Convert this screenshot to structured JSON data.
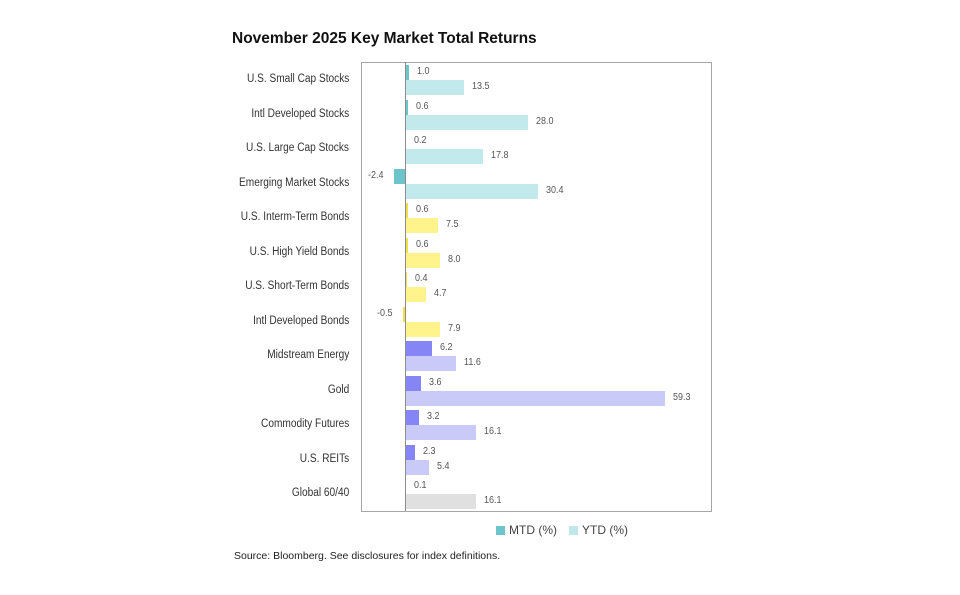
{
  "title": "November 2025 Key Market Total Returns",
  "source": "Source: Bloomberg. See disclosures for index definitions.",
  "legend": {
    "mtd": "MTD (%)",
    "ytd": "YTD (%)",
    "mtd_color": "#6cc5cb",
    "ytd_color": "#bfe8ea"
  },
  "colors": {
    "equity": {
      "mtd": "#6cc5cb",
      "ytd": "#c2e9ec"
    },
    "bond": {
      "mtd": "#f2e04a",
      "ytd": "#fff38c"
    },
    "real": {
      "mtd": "#8585f5",
      "ytd": "#cacaf8"
    },
    "balanced": {
      "mtd": "#dcdcdc",
      "ytd": "#e0e0e0"
    }
  },
  "chart_data": {
    "type": "bar",
    "orientation": "horizontal",
    "title": "November 2025 Key Market Total Returns",
    "xlabel": "",
    "ylabel": "",
    "grid": false,
    "legend_position": "bottom",
    "categories": [
      "U.S. Small Cap Stocks",
      "Intl Developed Stocks",
      "U.S. Large Cap Stocks",
      "Emerging Market Stocks",
      "U.S. Interm-Term Bonds",
      "U.S. High Yield Bonds",
      "U.S. Short-Term Bonds",
      "Intl Developed Bonds",
      "Midstream Energy",
      "Gold",
      "Commodity Futures",
      "U.S. REITs",
      "Global 60/40"
    ],
    "groups": [
      "equity",
      "equity",
      "equity",
      "equity",
      "bond",
      "bond",
      "bond",
      "bond",
      "real",
      "real",
      "real",
      "real",
      "balanced"
    ],
    "series": [
      {
        "name": "MTD (%)",
        "values": [
          1.0,
          0.6,
          0.2,
          -2.4,
          0.6,
          0.6,
          0.4,
          -0.5,
          6.2,
          3.6,
          3.2,
          2.3,
          0.1
        ]
      },
      {
        "name": "YTD (%)",
        "values": [
          13.5,
          28.0,
          17.8,
          30.4,
          7.5,
          8.0,
          4.7,
          7.9,
          11.6,
          59.3,
          16.1,
          5.4,
          16.1
        ]
      }
    ],
    "labels": {
      "mtd": [
        "1.0",
        "0.6",
        "0.2",
        "-2.4",
        "0.6",
        "0.6",
        "0.4",
        "-0.5",
        "6.2",
        "3.6",
        "3.2",
        "2.3",
        "0.1"
      ],
      "ytd": [
        "13.5",
        "28.0",
        "17.8",
        "30.4",
        "7.5",
        "8.0",
        "4.7",
        "7.9",
        "11.6",
        "59.3",
        "16.1",
        "5.4",
        "16.1"
      ]
    },
    "xlim": [
      -10,
      70
    ]
  }
}
